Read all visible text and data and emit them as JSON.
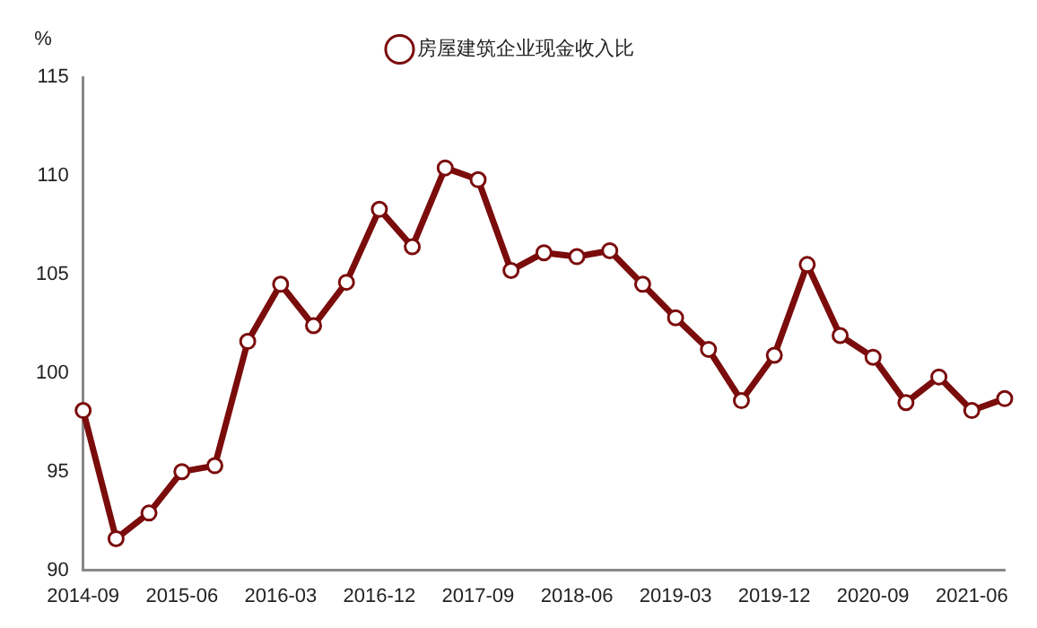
{
  "chart_data": {
    "type": "line",
    "ylabel": "%",
    "categories": [
      "2014-09",
      null,
      null,
      "2015-06",
      null,
      null,
      "2016-03",
      null,
      null,
      "2016-12",
      null,
      null,
      "2017-09",
      null,
      null,
      "2018-06",
      null,
      null,
      "2019-03",
      null,
      null,
      "2019-12",
      null,
      null,
      "2020-09",
      null,
      null,
      "2021-06",
      null
    ],
    "series": [
      {
        "name": "房屋建筑企业现金收入比",
        "color": "#7b0c0c",
        "values": [
          98.1,
          91.6,
          92.9,
          95.0,
          95.3,
          101.6,
          104.5,
          102.4,
          104.6,
          108.3,
          106.4,
          110.4,
          109.8,
          105.2,
          106.1,
          105.9,
          106.2,
          104.5,
          102.8,
          101.2,
          98.6,
          100.9,
          105.5,
          101.9,
          100.8,
          98.5,
          99.8,
          98.1,
          98.7
        ]
      }
    ],
    "ylim": [
      90,
      115
    ],
    "yticks": [
      90,
      95,
      100,
      105,
      110,
      115
    ],
    "grid": false,
    "legend": "top",
    "marker": "circle",
    "line_style": "solid"
  }
}
